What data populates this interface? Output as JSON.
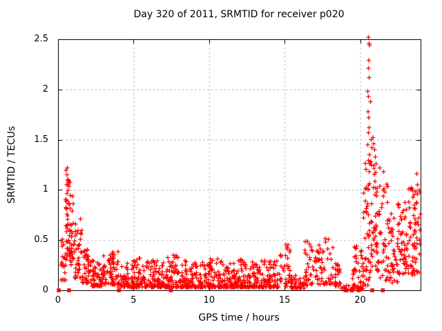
{
  "title": "Day 320 of 2011, SRMTID for receiver p020",
  "x_axis": {
    "label": "GPS time / hours",
    "ticks": [
      0,
      5,
      10,
      15,
      20
    ],
    "range": [
      0,
      24
    ]
  },
  "y_axis": {
    "label": "SRMTID / TECUs",
    "ticks": [
      0,
      0.5,
      1,
      1.5,
      2,
      2.5
    ],
    "range": [
      0,
      2.5
    ]
  },
  "colors": {
    "points": "#ff0000",
    "grid": "#b9b9b9",
    "border": "#000000",
    "text": "#000000",
    "background": "#ffffff"
  },
  "chart_data": {
    "type": "scatter",
    "title": "Day 320 of 2011, SRMTID for receiver p020",
    "xlabel": "GPS time / hours",
    "ylabel": "SRMTID / TECUs",
    "xlim": [
      0,
      24
    ],
    "ylim": [
      0,
      2.5
    ],
    "grid": {
      "on": true,
      "style": "dashed",
      "color": "#b9b9b9"
    },
    "legend_position": "none",
    "marker": "plus",
    "marker_color": "#ff0000",
    "seed": 42,
    "bands_format": "[hour_start, hour_end, count, y_min, y_max, concentration_exponent]",
    "bands": [
      [
        0.2,
        0.55,
        20,
        0.1,
        0.6,
        1.6
      ],
      [
        0.5,
        0.8,
        45,
        0.3,
        1.2,
        1.3
      ],
      [
        0.75,
        1.1,
        30,
        0.25,
        0.95,
        1.5
      ],
      [
        1.1,
        1.6,
        35,
        0.12,
        0.72,
        1.8
      ],
      [
        1.6,
        2.2,
        45,
        0.07,
        0.42,
        1.8
      ],
      [
        2.2,
        3.0,
        55,
        0.04,
        0.3,
        2.0
      ],
      [
        3.0,
        4.0,
        70,
        0.06,
        0.4,
        2.0
      ],
      [
        4.0,
        5.0,
        60,
        0.03,
        0.28,
        2.2
      ],
      [
        5.0,
        6.0,
        70,
        0.03,
        0.32,
        2.4
      ],
      [
        6.0,
        7.0,
        70,
        0.03,
        0.3,
        2.4
      ],
      [
        7.0,
        8.0,
        70,
        0.03,
        0.35,
        2.4
      ],
      [
        8.0,
        9.0,
        70,
        0.03,
        0.3,
        2.4
      ],
      [
        9.0,
        10.0,
        70,
        0.03,
        0.28,
        2.4
      ],
      [
        10.0,
        11.0,
        70,
        0.03,
        0.32,
        2.4
      ],
      [
        11.0,
        12.0,
        70,
        0.03,
        0.3,
        2.4
      ],
      [
        12.0,
        13.0,
        70,
        0.03,
        0.32,
        2.4
      ],
      [
        13.0,
        14.0,
        70,
        0.03,
        0.3,
        2.4
      ],
      [
        14.0,
        14.6,
        40,
        0.03,
        0.3,
        2.2
      ],
      [
        14.6,
        15.4,
        35,
        0.04,
        0.48,
        1.8
      ],
      [
        15.4,
        16.3,
        45,
        0.02,
        0.15,
        2.0
      ],
      [
        16.3,
        17.0,
        35,
        0.05,
        0.5,
        1.7
      ],
      [
        17.0,
        18.2,
        55,
        0.06,
        0.52,
        1.8
      ],
      [
        18.2,
        18.7,
        25,
        0.04,
        0.3,
        1.8
      ],
      [
        18.7,
        19.5,
        14,
        0.0,
        0.06,
        1.5
      ],
      [
        19.5,
        20.2,
        50,
        0.01,
        0.45,
        2.0
      ],
      [
        20.2,
        20.75,
        55,
        0.05,
        1.3,
        1.4
      ],
      [
        20.75,
        21.2,
        40,
        0.2,
        1.3,
        1.3
      ],
      [
        21.2,
        21.9,
        45,
        0.1,
        1.1,
        1.4
      ],
      [
        21.9,
        22.5,
        40,
        0.05,
        0.8,
        1.5
      ],
      [
        22.5,
        23.2,
        55,
        0.15,
        0.95,
        1.4
      ],
      [
        23.2,
        24.0,
        70,
        0.15,
        1.05,
        1.3
      ]
    ],
    "peak_points": [
      [
        20.55,
        2.52
      ],
      [
        20.6,
        2.46
      ],
      [
        20.62,
        2.44
      ],
      [
        20.57,
        2.29
      ],
      [
        20.55,
        2.21
      ],
      [
        20.6,
        2.12
      ],
      [
        20.5,
        1.98
      ],
      [
        20.55,
        1.93
      ],
      [
        20.68,
        1.88
      ],
      [
        20.52,
        1.78
      ],
      [
        20.58,
        1.72
      ],
      [
        20.6,
        1.62
      ],
      [
        20.55,
        1.57
      ],
      [
        20.72,
        1.5
      ],
      [
        20.5,
        1.45
      ],
      [
        20.78,
        1.42
      ],
      [
        20.62,
        1.35
      ],
      [
        20.7,
        1.28
      ],
      [
        20.85,
        1.52
      ],
      [
        20.9,
        1.46
      ],
      [
        20.95,
        1.4
      ],
      [
        21.0,
        1.33
      ],
      [
        21.05,
        1.26
      ],
      [
        21.3,
        1.22
      ],
      [
        21.55,
        1.18
      ],
      [
        23.75,
        1.16
      ],
      [
        23.8,
        1.05
      ],
      [
        23.9,
        1.0
      ],
      [
        0.62,
        1.22
      ],
      [
        0.6,
        1.15
      ],
      [
        0.65,
        1.1
      ],
      [
        0.58,
        1.05
      ]
    ],
    "zero_value_squares_hours": [
      0.05,
      0.73,
      4.03,
      7.47,
      19.05,
      19.45,
      19.9,
      20.8,
      21.5
    ]
  }
}
